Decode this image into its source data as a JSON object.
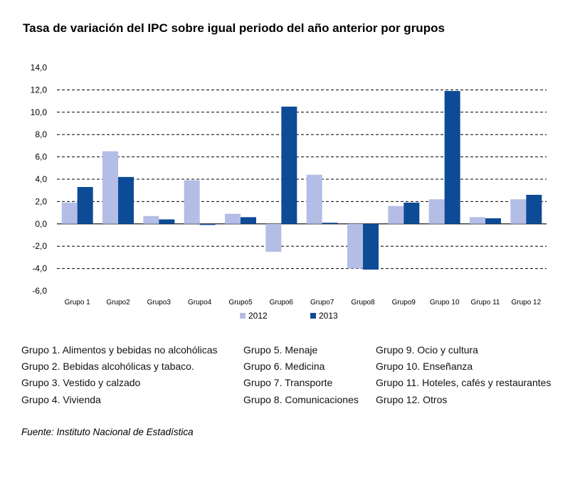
{
  "chart_data": {
    "type": "bar",
    "title": "Tasa de variación del IPC sobre igual periodo del año anterior por grupos",
    "categories": [
      "Grupo 1",
      "Grupo2",
      "Grupo3",
      "Grupo4",
      "Grupo5",
      "Grupo6",
      "Grupo7",
      "Grupo8",
      "Grupo9",
      "Grupo 10",
      "Grupo 11",
      "Grupo 12"
    ],
    "series": [
      {
        "name": "2012",
        "color": "#b3bde6",
        "values": [
          1.9,
          6.5,
          0.7,
          3.9,
          0.9,
          -2.5,
          4.4,
          -4.0,
          1.6,
          2.2,
          0.6,
          2.2
        ]
      },
      {
        "name": "2013",
        "color": "#0d4b96",
        "values": [
          3.3,
          4.2,
          0.4,
          -0.1,
          0.6,
          10.5,
          0.1,
          -4.1,
          1.9,
          11.9,
          0.5,
          2.6
        ]
      }
    ],
    "yticks": [
      "14,0",
      "12,0",
      "10,0",
      "8,0",
      "6,0",
      "4,0",
      "2,0",
      "0,0",
      "-2,0",
      "-4,0",
      "-6,0"
    ],
    "ylim": [
      -6,
      14
    ],
    "grid": "dashed horizontal",
    "legend": "bottom"
  },
  "notes": [
    "Grupo 1. Alimentos y bebidas no alcohólicas",
    "Grupo 2. Bebidas alcohólicas y  tabaco.",
    "Grupo 3. Vestido y calzado",
    "Grupo 4. Vivienda",
    "Grupo 5. Menaje",
    "Grupo 6. Medicina",
    "Grupo 7. Transporte",
    "Grupo 8. Comunicaciones",
    "Grupo 9. Ocio y cultura",
    "Grupo 10. Enseñanza",
    "Grupo 11. Hoteles, cafés y restaurantes",
    "Grupo 12. Otros"
  ],
  "source": "Fuente: Instituto Nacional de Estadística"
}
